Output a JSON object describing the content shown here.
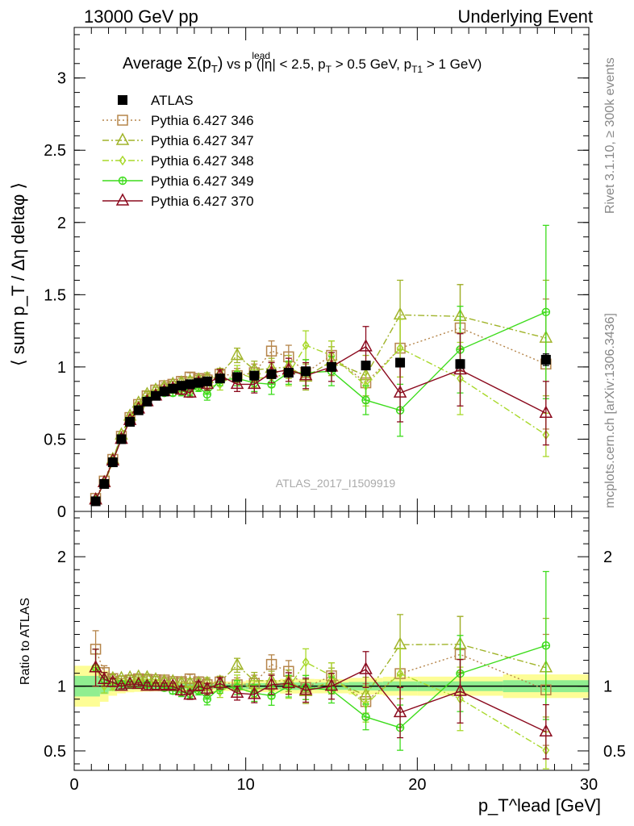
{
  "header": {
    "left": "13000 GeV pp",
    "right": "Underlying Event"
  },
  "side_labels": {
    "rivet": "Rivet 3.1.10, ≥ 300k events",
    "mcplots": "mcplots.cern.ch [arXiv:1306.3436]"
  },
  "colors": {
    "ATLAS": "#000000",
    "Pythia 6.427 346": "#b5854a",
    "Pythia 6.427 347": "#a0b42a",
    "Pythia 6.427 348": "#a8d82a",
    "Pythia 6.427 349": "#3ddc1c",
    "Pythia 6.427 370": "#8b0a1e",
    "band_inner": "#90ee90",
    "band_outer": "#fdfd96"
  },
  "chart_data": [
    {
      "type": "line",
      "panel": "main",
      "title_parts": {
        "pre": "Average ",
        "sigma": "Σ(p",
        "sub_T": "T",
        "close": ")",
        "vs": " vs p",
        "sup_lead": "lead",
        "tail1": " (|η| < 2.5, p",
        "tail2": " > 0.5 GeV, p",
        "sub_T1": "T1",
        "tail3": " > 1 GeV)"
      },
      "ylabel": "⟨ sum p_T / Δη deltaφ ⟩",
      "xlim": [
        0,
        30
      ],
      "ylim": [
        0,
        3.35
      ],
      "yticks": [
        0,
        0.5,
        1,
        1.5,
        2,
        2.5,
        3
      ],
      "ytick_labels": [
        "0",
        "0.5",
        "1",
        "1.5",
        "2",
        "2.5",
        "3"
      ],
      "watermark": "ATLAS_2017_I1509919",
      "legend_position": "top-left",
      "series": [
        {
          "name": "ATLAS",
          "marker": "square-filled",
          "line": "none",
          "x": [
            1.25,
            1.75,
            2.25,
            2.75,
            3.25,
            3.75,
            4.25,
            4.75,
            5.25,
            5.75,
            6.25,
            6.75,
            7.25,
            7.75,
            8.5,
            9.5,
            10.5,
            11.5,
            12.5,
            13.5,
            15.0,
            17.0,
            19.0,
            22.5,
            27.5
          ],
          "y": [
            0.07,
            0.19,
            0.34,
            0.5,
            0.62,
            0.7,
            0.76,
            0.8,
            0.83,
            0.85,
            0.87,
            0.88,
            0.89,
            0.9,
            0.92,
            0.93,
            0.94,
            0.95,
            0.96,
            0.97,
            1.0,
            1.01,
            1.03,
            1.02,
            1.05
          ],
          "err": [
            0.005,
            0.01,
            0.01,
            0.01,
            0.01,
            0.01,
            0.01,
            0.01,
            0.01,
            0.01,
            0.01,
            0.01,
            0.01,
            0.01,
            0.01,
            0.01,
            0.015,
            0.015,
            0.02,
            0.02,
            0.02,
            0.025,
            0.03,
            0.03,
            0.04
          ]
        },
        {
          "name": "Pythia 6.427 346",
          "marker": "square-open",
          "line": "dotted",
          "x": [
            1.25,
            1.75,
            2.25,
            2.75,
            3.25,
            3.75,
            4.25,
            4.75,
            5.25,
            5.75,
            6.25,
            6.75,
            7.25,
            7.75,
            8.5,
            9.5,
            10.5,
            11.5,
            12.5,
            13.5,
            15.0,
            17.0,
            19.0,
            22.5,
            27.5
          ],
          "y": [
            0.09,
            0.21,
            0.36,
            0.52,
            0.65,
            0.74,
            0.8,
            0.84,
            0.87,
            0.88,
            0.9,
            0.93,
            0.92,
            0.91,
            0.95,
            0.94,
            0.96,
            1.11,
            1.07,
            0.96,
            1.08,
            0.89,
            1.13,
            1.27,
            1.02
          ],
          "err": [
            0.01,
            0.01,
            0.01,
            0.01,
            0.01,
            0.01,
            0.02,
            0.02,
            0.02,
            0.02,
            0.03,
            0.03,
            0.03,
            0.04,
            0.04,
            0.05,
            0.06,
            0.07,
            0.08,
            0.09,
            0.1,
            0.14,
            0.2,
            0.3,
            0.45
          ]
        },
        {
          "name": "Pythia 6.427 347",
          "marker": "triangle-open",
          "line": "dashdot",
          "x": [
            1.25,
            1.75,
            2.25,
            2.75,
            3.25,
            3.75,
            4.25,
            4.75,
            5.25,
            5.75,
            6.25,
            6.75,
            7.25,
            7.75,
            8.5,
            9.5,
            10.5,
            11.5,
            12.5,
            13.5,
            15.0,
            17.0,
            19.0,
            22.5,
            27.5
          ],
          "y": [
            0.08,
            0.2,
            0.36,
            0.53,
            0.66,
            0.75,
            0.81,
            0.84,
            0.86,
            0.88,
            0.89,
            0.9,
            0.91,
            0.92,
            0.95,
            1.08,
            0.98,
            0.99,
            1.0,
            0.93,
            1.04,
            0.94,
            1.36,
            1.35,
            1.2
          ],
          "err": [
            0.01,
            0.01,
            0.01,
            0.01,
            0.01,
            0.01,
            0.02,
            0.02,
            0.02,
            0.02,
            0.03,
            0.03,
            0.03,
            0.04,
            0.04,
            0.05,
            0.06,
            0.07,
            0.08,
            0.09,
            0.1,
            0.14,
            0.24,
            0.22,
            0.4
          ]
        },
        {
          "name": "Pythia 6.427 348",
          "marker": "diamond-open",
          "line": "dashdot",
          "x": [
            1.25,
            1.75,
            2.25,
            2.75,
            3.25,
            3.75,
            4.25,
            4.75,
            5.25,
            5.75,
            6.25,
            6.75,
            7.25,
            7.75,
            8.5,
            9.5,
            10.5,
            11.5,
            12.5,
            13.5,
            15.0,
            17.0,
            19.0,
            22.5,
            27.5
          ],
          "y": [
            0.08,
            0.19,
            0.34,
            0.51,
            0.64,
            0.73,
            0.78,
            0.82,
            0.84,
            0.84,
            0.84,
            0.85,
            0.87,
            0.86,
            0.88,
            0.96,
            0.92,
            0.93,
            0.95,
            1.15,
            1.08,
            0.87,
            1.13,
            0.92,
            0.53
          ],
          "err": [
            0.01,
            0.01,
            0.01,
            0.01,
            0.01,
            0.01,
            0.02,
            0.02,
            0.02,
            0.02,
            0.03,
            0.03,
            0.03,
            0.04,
            0.04,
            0.05,
            0.06,
            0.07,
            0.08,
            0.1,
            0.1,
            0.14,
            0.2,
            0.25,
            0.15
          ]
        },
        {
          "name": "Pythia 6.427 349",
          "marker": "circle-cross",
          "line": "solid",
          "x": [
            1.25,
            1.75,
            2.25,
            2.75,
            3.25,
            3.75,
            4.25,
            4.75,
            5.25,
            5.75,
            6.25,
            6.75,
            7.25,
            7.75,
            8.5,
            9.5,
            10.5,
            11.5,
            12.5,
            13.5,
            15.0,
            17.0,
            19.0,
            22.5,
            27.5
          ],
          "y": [
            0.08,
            0.2,
            0.35,
            0.51,
            0.63,
            0.71,
            0.77,
            0.8,
            0.82,
            0.82,
            0.83,
            0.83,
            0.86,
            0.81,
            0.91,
            0.92,
            0.89,
            0.88,
            0.96,
            0.96,
            0.97,
            0.77,
            0.7,
            1.12,
            1.38
          ],
          "err": [
            0.01,
            0.01,
            0.01,
            0.01,
            0.01,
            0.01,
            0.02,
            0.02,
            0.02,
            0.02,
            0.03,
            0.03,
            0.03,
            0.04,
            0.04,
            0.05,
            0.06,
            0.07,
            0.08,
            0.09,
            0.1,
            0.1,
            0.18,
            0.3,
            0.6
          ]
        },
        {
          "name": "Pythia 6.427 370",
          "marker": "triangle-open",
          "line": "solid",
          "x": [
            1.25,
            1.75,
            2.25,
            2.75,
            3.25,
            3.75,
            4.25,
            4.75,
            5.25,
            5.75,
            6.25,
            6.75,
            7.25,
            7.75,
            8.5,
            9.5,
            10.5,
            11.5,
            12.5,
            13.5,
            15.0,
            17.0,
            19.0,
            22.5,
            27.5
          ],
          "y": [
            0.08,
            0.2,
            0.35,
            0.5,
            0.63,
            0.71,
            0.76,
            0.8,
            0.83,
            0.85,
            0.84,
            0.82,
            0.89,
            0.88,
            0.94,
            0.88,
            0.88,
            0.96,
            0.98,
            0.94,
            1.0,
            1.14,
            0.82,
            0.98,
            0.68
          ],
          "err": [
            0.01,
            0.01,
            0.01,
            0.01,
            0.01,
            0.01,
            0.02,
            0.02,
            0.02,
            0.02,
            0.03,
            0.03,
            0.03,
            0.04,
            0.04,
            0.05,
            0.06,
            0.07,
            0.08,
            0.09,
            0.1,
            0.14,
            0.2,
            0.25,
            0.22
          ]
        }
      ]
    },
    {
      "type": "line",
      "panel": "ratio",
      "ylabel": "Ratio to ATLAS",
      "xlabel": "p_T^lead [GeV]",
      "xlim": [
        0,
        30
      ],
      "ylim": [
        0.35,
        2.35
      ],
      "yticks": [
        0.5,
        1,
        2
      ],
      "ytick_labels": [
        "0.5",
        "1",
        "2"
      ],
      "xticks": [
        0,
        10,
        20,
        30
      ],
      "xtick_labels": [
        "0",
        "10",
        "20",
        "30"
      ],
      "reference_line": 1
    }
  ]
}
